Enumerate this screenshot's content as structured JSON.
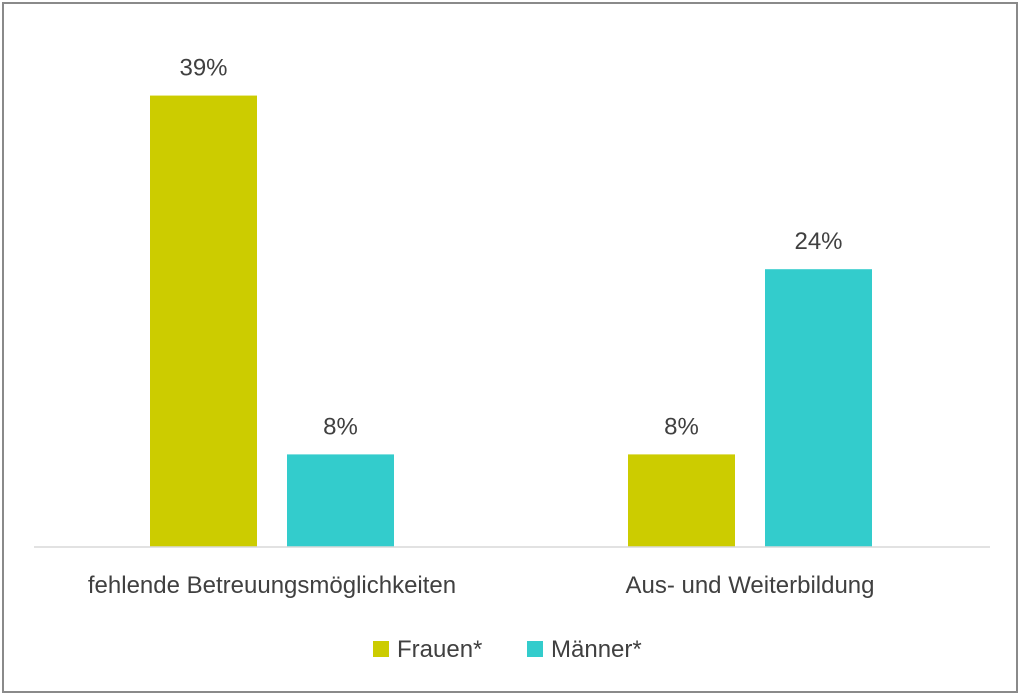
{
  "chart_data": {
    "type": "bar",
    "categories": [
      "fehlende Betreuungsmöglichkeiten",
      "Aus- und Weiterbildung"
    ],
    "series": [
      {
        "name": "Frauen*",
        "values": [
          39,
          8
        ],
        "labels": [
          "39%",
          "8%"
        ],
        "color": "#cccc00"
      },
      {
        "name": "Männer*",
        "values": [
          8,
          24
        ],
        "labels": [
          "8%",
          "24%"
        ],
        "color": "#33cccc"
      }
    ],
    "unit": "%",
    "ylim": [
      0,
      40
    ],
    "grid": false,
    "legend_position": "bottom"
  }
}
